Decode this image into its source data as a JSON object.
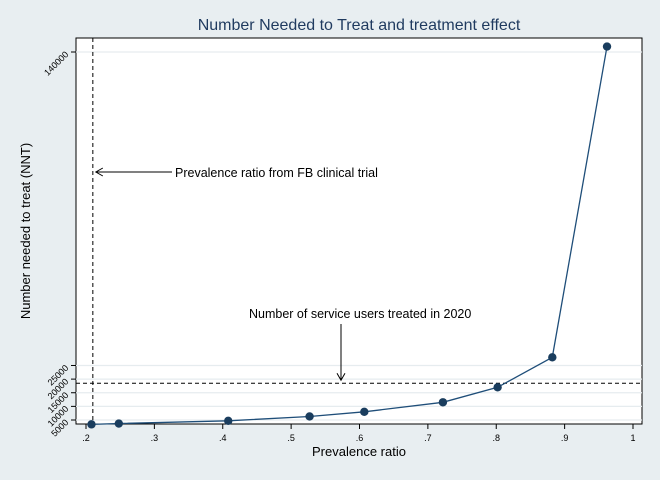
{
  "chart_data": {
    "type": "line",
    "title": "Number Needed to Treat and treatment effect",
    "xlabel": "Prevalence ratio",
    "ylabel": "Number needed to treat (NNT)",
    "xlim": [
      0.2,
      1.0
    ],
    "ylim": [
      0,
      145000
    ],
    "x_ticks": [
      ".2",
      ".3",
      ".4",
      ".5",
      ".6",
      ".7",
      ".8",
      ".9",
      "1"
    ],
    "x_tick_values": [
      0.2,
      0.3,
      0.4,
      0.5,
      0.6,
      0.7,
      0.8,
      0.9,
      1.0
    ],
    "y_ticks": [
      "5000",
      "10000",
      "15000",
      "20000",
      "25000",
      "140000"
    ],
    "y_tick_values": [
      5000,
      10000,
      15000,
      20000,
      25000,
      140000
    ],
    "grid": true,
    "series": [
      {
        "name": "NNT",
        "x": [
          0.208,
          0.248,
          0.408,
          0.527,
          0.607,
          0.722,
          0.802,
          0.882,
          0.962
        ],
        "y": [
          3400,
          3700,
          4700,
          6300,
          8000,
          11500,
          17000,
          28000,
          142000
        ]
      }
    ],
    "reference_lines": [
      {
        "orientation": "vertical",
        "value": 0.21,
        "style": "dashed"
      },
      {
        "orientation": "horizontal",
        "value": 18500,
        "style": "dashed"
      }
    ],
    "annotations": [
      {
        "text": "Prevalence ratio from FB clinical trial",
        "arrow_to": "vertical reference line"
      },
      {
        "text": "Number of service users treated in 2020",
        "arrow_to": "horizontal reference line"
      }
    ],
    "colors": {
      "line": "#1f4e79",
      "marker": "#1a3d5e",
      "background": "#e8eef1",
      "plot_background": "#ffffff",
      "grid": "#e6ecef"
    }
  }
}
